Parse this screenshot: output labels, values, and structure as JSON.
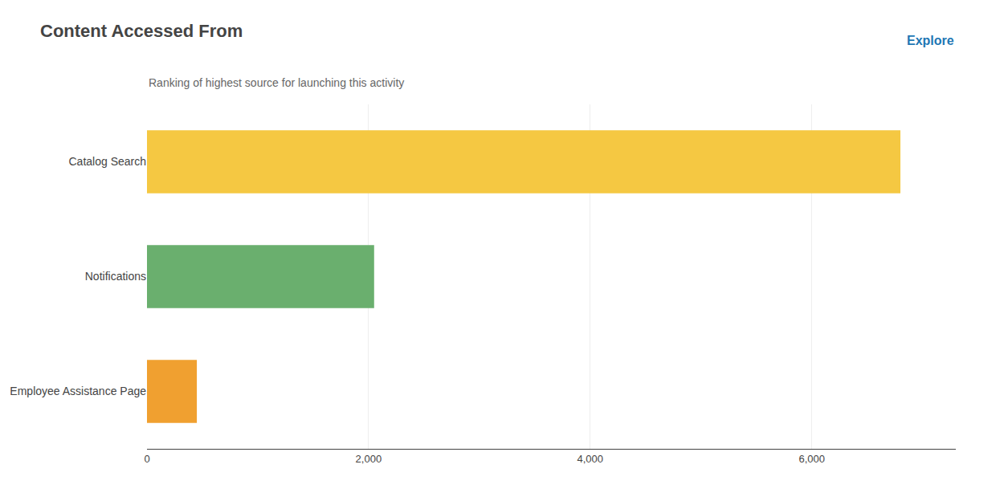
{
  "chart_data": {
    "type": "bar",
    "orientation": "horizontal",
    "title": "Content Accessed From",
    "subtitle": "Ranking of highest source for launching this activity",
    "annotations": [
      "Explore"
    ],
    "categories": [
      "Catalog Search",
      "Notifications",
      "Employee Assistance Page"
    ],
    "values": [
      6800,
      2050,
      450
    ],
    "colors": [
      "#F5C842",
      "#6AAF6E",
      "#F0A030"
    ],
    "xlim": [
      0,
      7300
    ],
    "xticks": [
      0,
      {
        "value": 2000,
        "label": "2,000"
      },
      {
        "value": 4000,
        "label": "4,000"
      },
      {
        "value": 6000,
        "label": "6,000"
      }
    ],
    "grid": true
  }
}
